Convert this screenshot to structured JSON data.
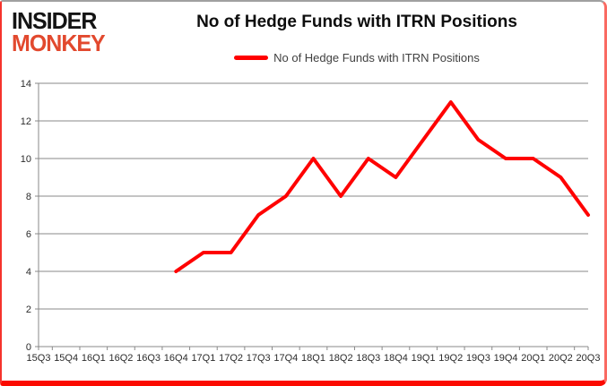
{
  "brand": {
    "line1": "INSIDER",
    "line2": "MONKEY"
  },
  "header": {
    "title": "No of Hedge Funds with ITRN Positions"
  },
  "legend": {
    "label": "No of Hedge Funds with ITRN Positions"
  },
  "colors": {
    "series_line": "#ff0000",
    "gridline": "#898989",
    "axis_line": "#898989",
    "tick_text": "#2b2b2b",
    "title_text": "#0d0d0d",
    "legend_text": "#404040",
    "brand_black": "#141414",
    "brand_red": "#e2492e",
    "card_border_bottom": "#fb0a00"
  },
  "chart_data": {
    "type": "line",
    "title": "No of Hedge Funds with ITRN Positions",
    "categories": [
      "15Q3",
      "15Q4",
      "16Q1",
      "16Q2",
      "16Q3",
      "16Q4",
      "17Q1",
      "17Q2",
      "17Q3",
      "17Q4",
      "18Q1",
      "18Q2",
      "18Q3",
      "18Q4",
      "19Q1",
      "19Q2",
      "19Q3",
      "19Q4",
      "20Q1",
      "20Q2",
      "20Q3"
    ],
    "series": [
      {
        "name": "No of Hedge Funds with ITRN Positions",
        "color": "#ff0000",
        "values": [
          null,
          null,
          null,
          null,
          null,
          4,
          5,
          5,
          7,
          8,
          10,
          8,
          10,
          9,
          11,
          13,
          11,
          10,
          10,
          9,
          7
        ]
      }
    ],
    "xlabel": "",
    "ylabel": "",
    "ylim": [
      0,
      14
    ],
    "ytick_step": 2,
    "grid": true,
    "legend_position": "top"
  }
}
